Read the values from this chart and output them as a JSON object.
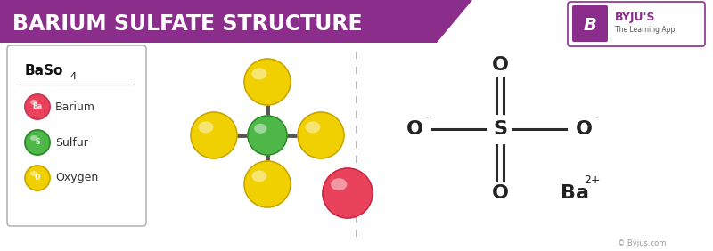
{
  "title": "BARIUM SULFATE STRUCTURE",
  "title_bg": "#8b2d8b",
  "title_color": "#ffffff",
  "title_fontsize": 17,
  "bg_color": "#ffffff",
  "legend_items": [
    {
      "label": "Barium",
      "color": "#e8435a",
      "symbol": "Ba"
    },
    {
      "label": "Sulfur",
      "color": "#4db847",
      "symbol": "S"
    },
    {
      "label": "Oxygen",
      "color": "#f5d800",
      "symbol": "O"
    }
  ],
  "sulfur_color": "#4db847",
  "oxygen_color": "#f0d000",
  "barium_color": "#e8435a",
  "byju_text": "© Byjus.com"
}
